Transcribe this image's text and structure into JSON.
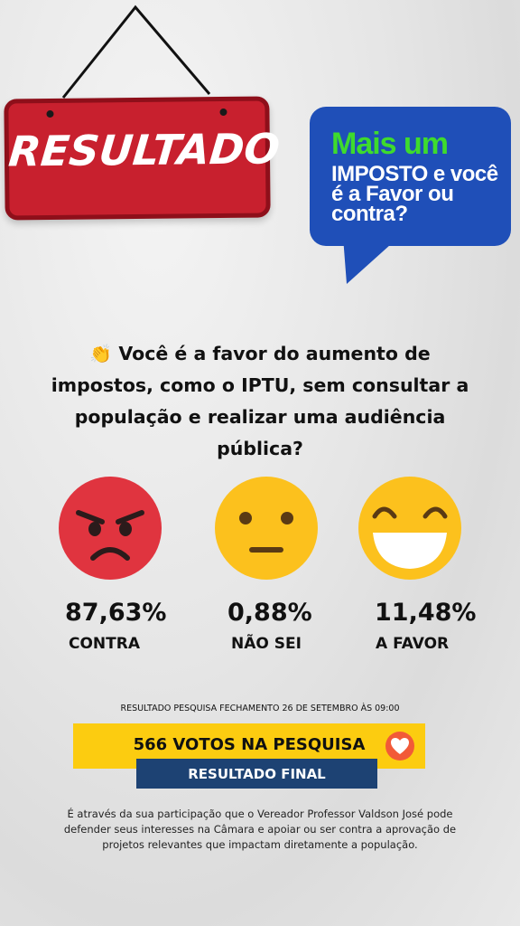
{
  "sign": {
    "title": "RESULTADO"
  },
  "bubble": {
    "line1": "Mais um",
    "line2": "IMPOSTO e você é a Favor ou contra?",
    "colors": {
      "background": "#1f4fb8",
      "accent": "#3edb2d"
    }
  },
  "question": {
    "icon": "waving-hand-icon",
    "emoji": "👏",
    "text": "Você é a favor do aumento de impostos, como o IPTU, sem consultar a população e realizar uma audiência pública?"
  },
  "results": [
    {
      "icon": "angry-face-icon",
      "percent": "87,63%",
      "label": "CONTRA",
      "color": "#e0343f"
    },
    {
      "icon": "neutral-face-icon",
      "percent": "0,88%",
      "label": "NÃO SEI",
      "color": "#fcc11d"
    },
    {
      "icon": "grinning-face-icon",
      "percent": "11,48%",
      "label": "A FAVOR",
      "color": "#fcc11d"
    }
  ],
  "survey_note": "RESULTADO PESQUISA FECHAMENTO 26 DE SETEMBRO ÀS 09:00",
  "votes": {
    "text": "566 VOTOS NA PESQUISA",
    "icon": "heart-icon",
    "bar_color": "#fccc10"
  },
  "final": {
    "text": "RESULTADO FINAL",
    "bar_color": "#1d4273"
  },
  "footer": "É através da sua participação que o Vereador Professor Valdson José pode defender seus interesses na Câmara e apoiar ou ser contra a aprovação de projetos relevantes que impactam diretamente a população."
}
